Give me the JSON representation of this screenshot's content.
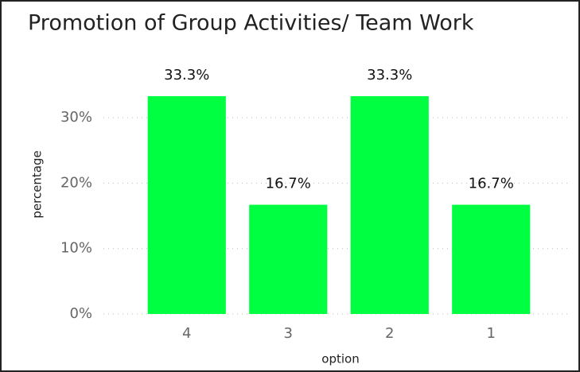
{
  "chart_data": {
    "type": "bar",
    "title": "Promotion of Group Activities/ Team Work",
    "x_label": "option",
    "y_label": "percentage",
    "categories": [
      "4",
      "3",
      "2",
      "1"
    ],
    "values": [
      33.3,
      16.7,
      33.3,
      16.7
    ],
    "value_labels": [
      "33.3%",
      "16.7%",
      "33.3%",
      "16.7%"
    ],
    "color": "#00ff40",
    "ylim": [
      0,
      35
    ],
    "yticks": [
      {
        "value": 0,
        "label": "0%"
      },
      {
        "value": 10,
        "label": "10%"
      },
      {
        "value": 20,
        "label": "20%"
      },
      {
        "value": 30,
        "label": "30%"
      }
    ],
    "grid": true
  }
}
